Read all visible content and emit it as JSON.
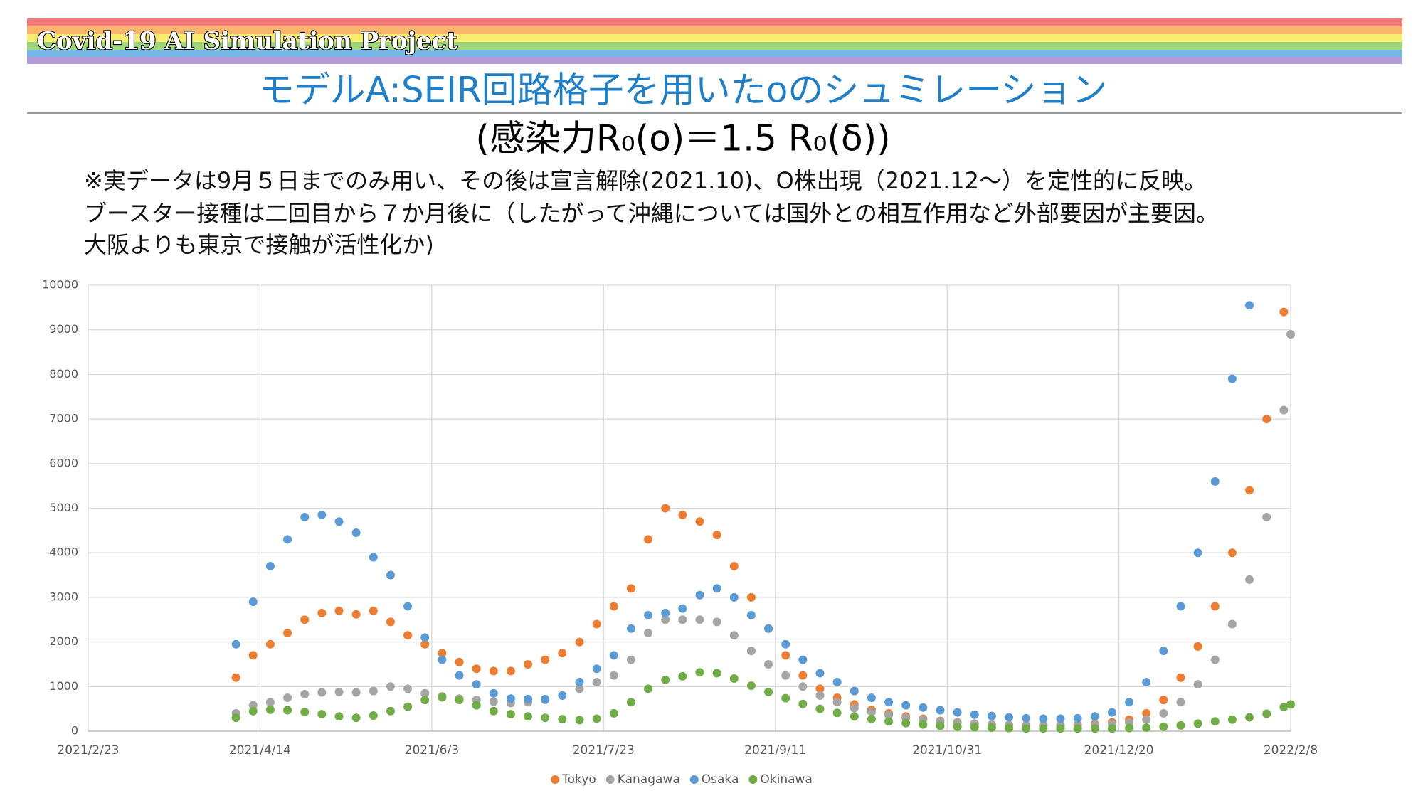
{
  "banner": "Covid-19 AI Simulation Project",
  "heading": "モデルA:SEIR回路格子を用いたοのシュミレーション",
  "subheading": "(感染力R₀(ο)＝1.5 R₀(δ))",
  "notes": [
    "※実データは9月５日までのみ用い、その後は宣言解除(2021.10)、O株出現（2021.12～）を定性的に反映。",
    "ブースター接種は二回目から７か月後に（したがって沖縄については国外との相互作用など外部要因が主要因。",
    "大阪よりも東京で接触が活性化か)"
  ],
  "chart_data": {
    "type": "scatter",
    "x": [
      "2021/4/7",
      "2021/4/12",
      "2021/4/17",
      "2021/4/22",
      "2021/4/27",
      "2021/5/2",
      "2021/5/7",
      "2021/5/12",
      "2021/5/17",
      "2021/5/22",
      "2021/5/27",
      "2021/6/1",
      "2021/6/6",
      "2021/6/11",
      "2021/6/16",
      "2021/6/21",
      "2021/6/26",
      "2021/7/1",
      "2021/7/6",
      "2021/7/11",
      "2021/7/16",
      "2021/7/21",
      "2021/7/26",
      "2021/7/31",
      "2021/8/5",
      "2021/8/10",
      "2021/8/15",
      "2021/8/20",
      "2021/8/25",
      "2021/8/30",
      "2021/9/4",
      "2021/9/9",
      "2021/9/14",
      "2021/9/19",
      "2021/9/24",
      "2021/9/29",
      "2021/10/4",
      "2021/10/9",
      "2021/10/14",
      "2021/10/19",
      "2021/10/24",
      "2021/10/29",
      "2021/11/3",
      "2021/11/8",
      "2021/11/13",
      "2021/11/18",
      "2021/11/23",
      "2021/11/28",
      "2021/12/3",
      "2021/12/8",
      "2021/12/13",
      "2021/12/18",
      "2021/12/23",
      "2021/12/28",
      "2022/1/2",
      "2022/1/7",
      "2022/1/12",
      "2022/1/17",
      "2022/1/22",
      "2022/1/27",
      "2022/2/1",
      "2022/2/6",
      "2022/2/8"
    ],
    "series": [
      {
        "name": "Tokyo",
        "color": "#ed7d31",
        "values": [
          1200,
          1700,
          1950,
          2200,
          2500,
          2650,
          2700,
          2620,
          2700,
          2450,
          2150,
          1950,
          1750,
          1550,
          1400,
          1350,
          1350,
          1500,
          1600,
          1750,
          2000,
          2400,
          2800,
          3200,
          4300,
          5000,
          4850,
          4700,
          4400,
          3700,
          3000,
          2300,
          1700,
          1250,
          950,
          750,
          600,
          480,
          400,
          330,
          280,
          230,
          200,
          170,
          150,
          140,
          130,
          130,
          130,
          140,
          160,
          200,
          260,
          400,
          700,
          1200,
          1900,
          2800,
          4000,
          5400,
          7000,
          9400,
          null
        ]
      },
      {
        "name": "Kanagawa",
        "color": "#a5a5a5",
        "values": [
          400,
          580,
          650,
          750,
          830,
          870,
          880,
          870,
          900,
          1000,
          950,
          850,
          780,
          730,
          700,
          660,
          630,
          650,
          700,
          800,
          950,
          1100,
          1250,
          1600,
          2200,
          2500,
          2500,
          2500,
          2450,
          2150,
          1800,
          1500,
          1250,
          1000,
          800,
          650,
          520,
          430,
          360,
          300,
          260,
          220,
          190,
          170,
          150,
          140,
          130,
          130,
          130,
          130,
          140,
          160,
          190,
          260,
          400,
          650,
          1050,
          1600,
          2400,
          3400,
          4800,
          7200,
          8900
        ]
      },
      {
        "name": "Osaka",
        "color": "#5b9bd5",
        "values": [
          1950,
          2900,
          3700,
          4300,
          4800,
          4850,
          4700,
          4450,
          3900,
          3500,
          2800,
          2100,
          1600,
          1250,
          1050,
          850,
          730,
          720,
          720,
          800,
          1100,
          1400,
          1700,
          2300,
          2600,
          2650,
          2750,
          3050,
          3200,
          3000,
          2600,
          2300,
          1950,
          1600,
          1300,
          1100,
          900,
          750,
          650,
          580,
          530,
          470,
          420,
          370,
          340,
          310,
          290,
          280,
          280,
          290,
          330,
          420,
          650,
          1100,
          1800,
          2800,
          4000,
          5600,
          7900,
          9550,
          null,
          null,
          null
        ]
      },
      {
        "name": "Okinawa",
        "color": "#70ad47",
        "values": [
          300,
          450,
          480,
          470,
          430,
          380,
          330,
          300,
          350,
          450,
          550,
          700,
          760,
          700,
          580,
          450,
          380,
          330,
          300,
          270,
          250,
          280,
          400,
          650,
          950,
          1150,
          1230,
          1320,
          1300,
          1180,
          1020,
          880,
          740,
          610,
          500,
          410,
          330,
          270,
          220,
          180,
          150,
          120,
          100,
          90,
          80,
          70,
          60,
          60,
          60,
          60,
          60,
          60,
          70,
          80,
          100,
          130,
          170,
          220,
          260,
          310,
          390,
          540,
          600
        ]
      }
    ],
    "xlim": [
      "2021/2/23",
      "2022/2/8"
    ],
    "xticks": [
      "2021/2/23",
      "2021/4/14",
      "2021/6/3",
      "2021/7/23",
      "2021/9/11",
      "2021/10/31",
      "2021/12/20",
      "2022/2/8"
    ],
    "ylim": [
      0,
      10000
    ],
    "yticks": [
      0,
      1000,
      2000,
      3000,
      4000,
      5000,
      6000,
      7000,
      8000,
      9000,
      10000
    ],
    "grid": true,
    "legend": "bottom"
  }
}
